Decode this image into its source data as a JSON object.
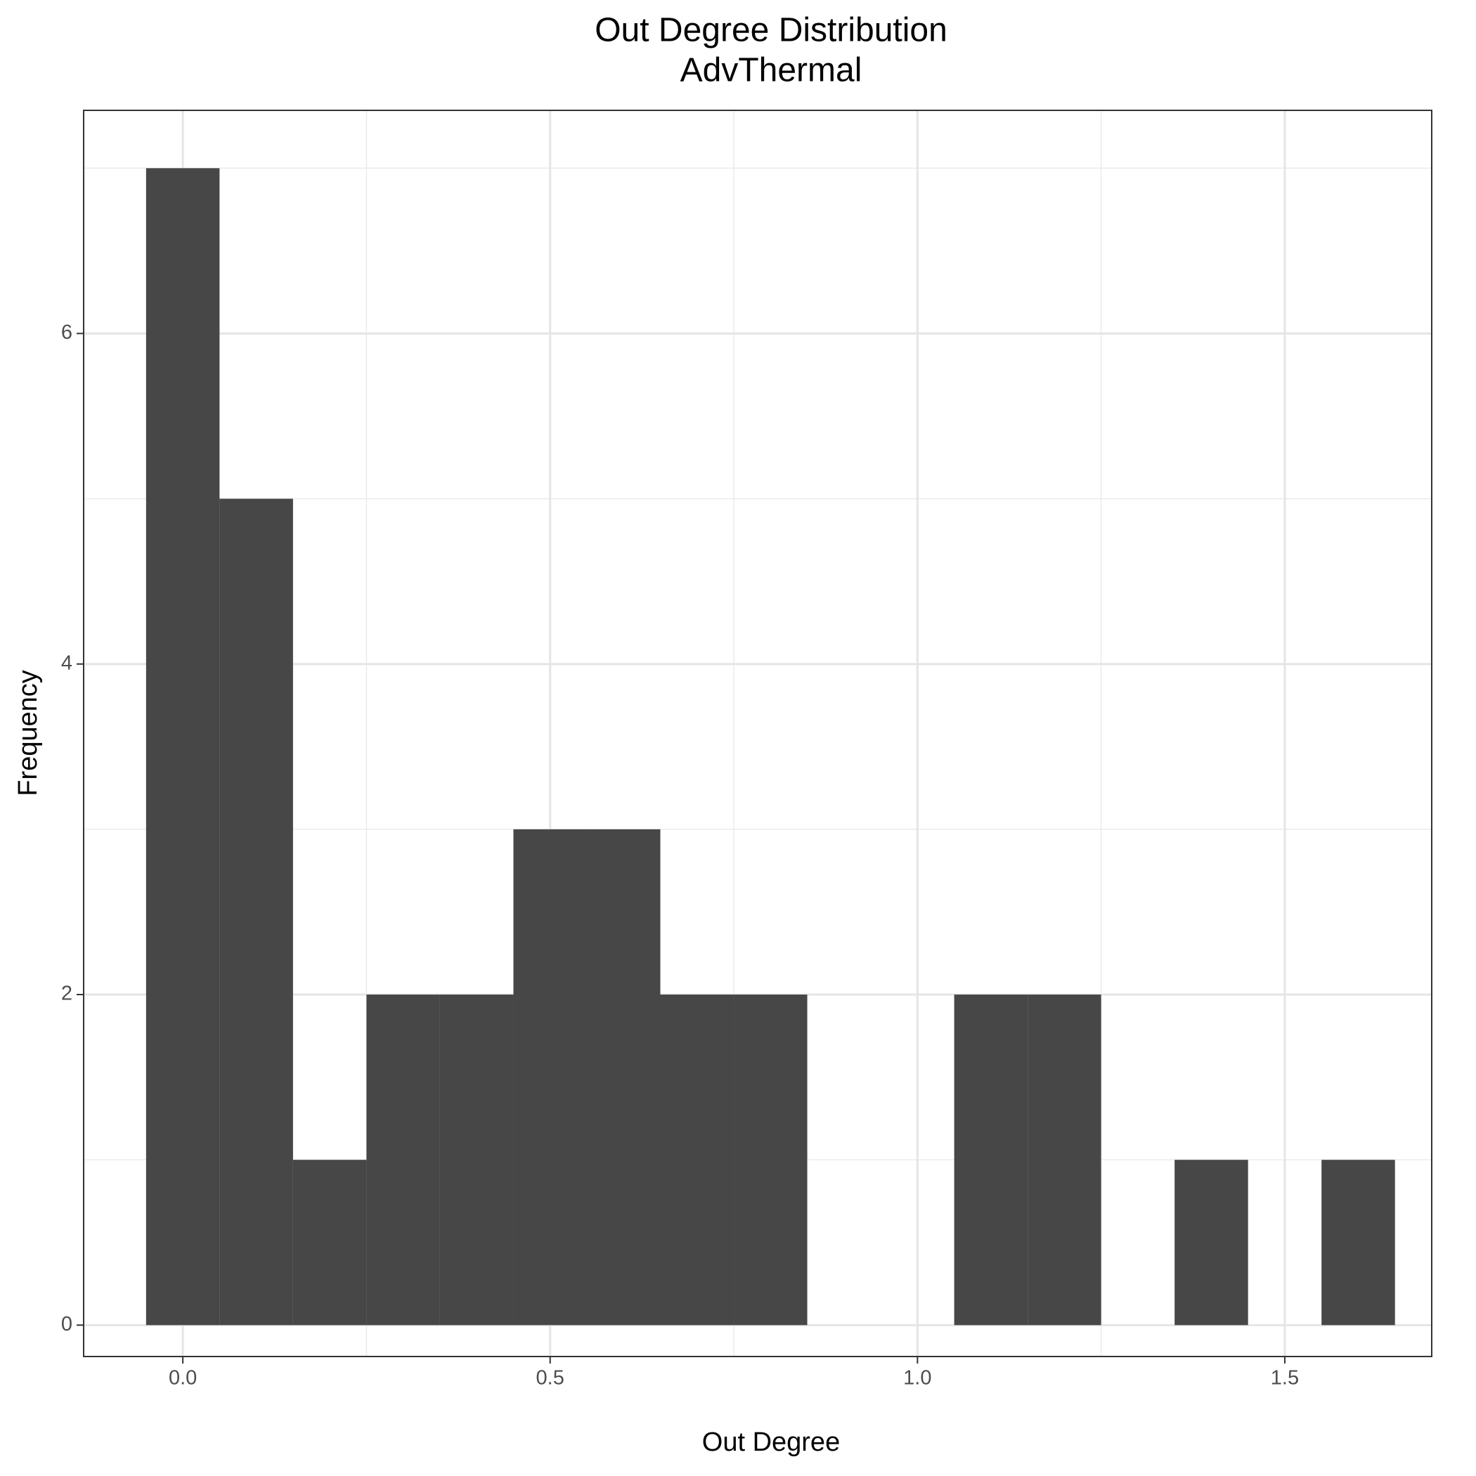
{
  "chart_data": {
    "type": "histogram",
    "title": "Out Degree Distribution",
    "subtitle": "AdvThermal",
    "x_label": "Out Degree",
    "y_label": "Frequency",
    "bins": [
      -0.05,
      0.05,
      0.15,
      0.25,
      0.35,
      0.45,
      0.55,
      0.65,
      0.75,
      0.85,
      0.95,
      1.05,
      1.15,
      1.25,
      1.35,
      1.45,
      1.55,
      1.65
    ],
    "values": [
      7,
      5,
      1,
      2,
      2,
      3,
      3,
      2,
      2,
      0,
      0,
      2,
      2,
      0,
      1,
      0,
      1
    ],
    "color": "#474747",
    "xlim": [
      -0.135,
      1.7
    ],
    "ylim": [
      -0.19,
      7.35
    ],
    "xticks": [
      {
        "value": 0,
        "label": "0.0"
      },
      0.5,
      {
        "value": 1,
        "label": "1.0"
      },
      1.5
    ],
    "yticks": [
      0,
      2,
      4,
      6
    ],
    "x_minor_grid": [
      0.25,
      0.75,
      1.25
    ],
    "y_minor_grid": [
      1,
      3,
      5,
      7
    ],
    "grid": true
  }
}
